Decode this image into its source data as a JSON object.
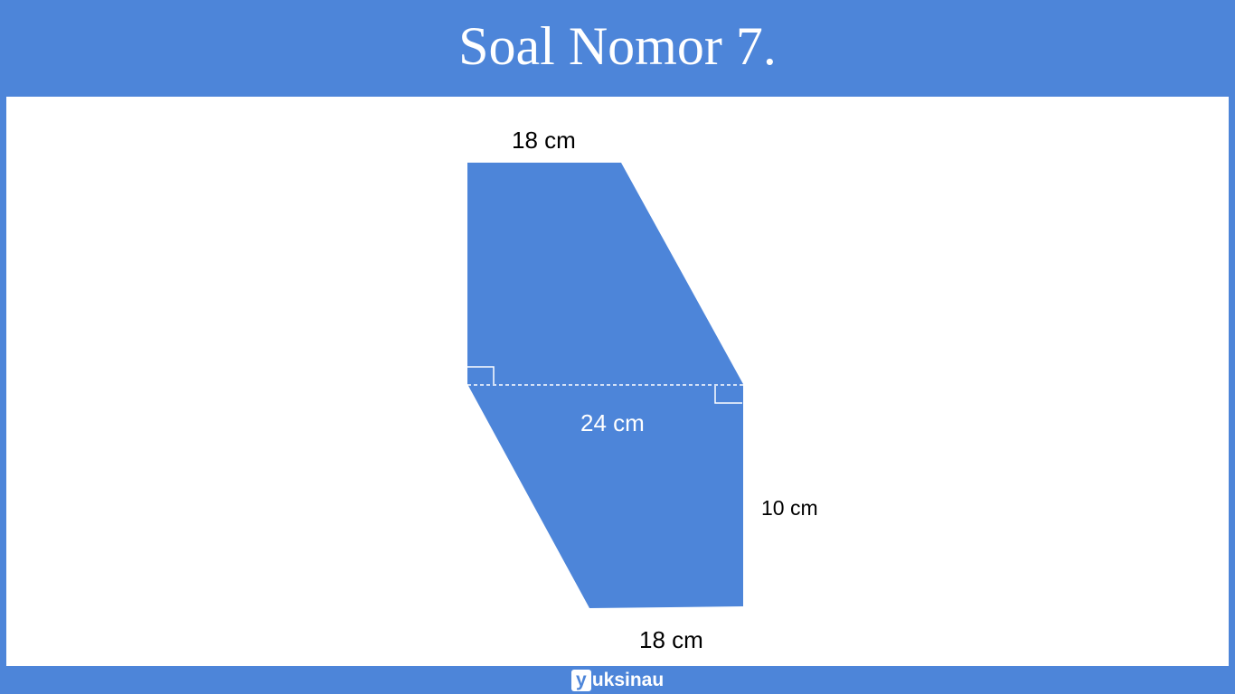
{
  "header": {
    "title": "Soal Nomor 7."
  },
  "figure": {
    "shape_color": "#4d85d9",
    "labels": {
      "top_side": "18 cm",
      "middle_width": "24 cm",
      "right_height": "10 cm",
      "bottom_side": "18 cm"
    }
  },
  "footer": {
    "brand_mark": "y",
    "brand_rest": "uksinau"
  },
  "colors": {
    "accent": "#4d85d9",
    "background": "#ffffff"
  }
}
